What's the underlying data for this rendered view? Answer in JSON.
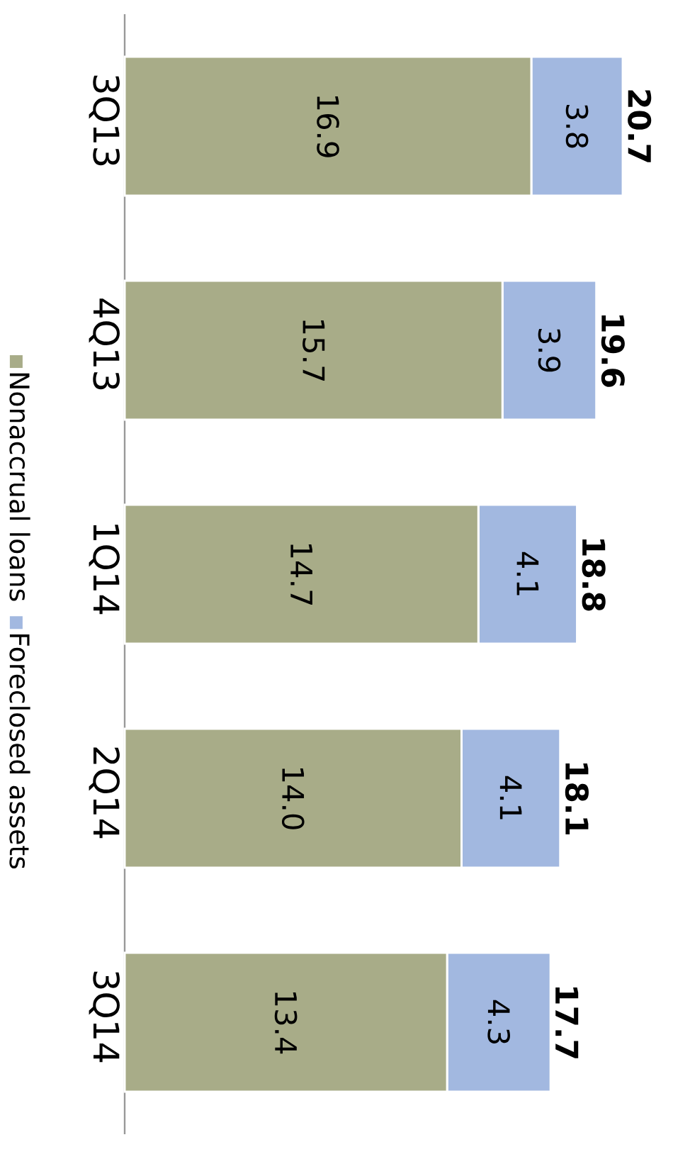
{
  "chart_data": {
    "type": "bar",
    "orientation": "horizontal",
    "stacked": true,
    "categories": [
      "3Q13",
      "4Q13",
      "1Q14",
      "2Q14",
      "3Q14"
    ],
    "series": [
      {
        "name": "Nonaccrual loans",
        "color": "#a8ac88",
        "values": [
          16.9,
          15.7,
          14.7,
          14.0,
          13.4
        ],
        "value_labels": [
          "16.9",
          "15.7",
          "14.7",
          "14.0",
          "13.4"
        ]
      },
      {
        "name": "Foreclosed assets",
        "color": "#a2b8e0",
        "values": [
          3.8,
          3.9,
          4.1,
          4.1,
          4.3
        ],
        "value_labels": [
          "3.8",
          "3.9",
          "4.1",
          "4.1",
          "4.3"
        ]
      }
    ],
    "totals": [
      "20.7",
      "19.6",
      "18.8",
      "18.1",
      "17.7"
    ],
    "legend": "left"
  }
}
